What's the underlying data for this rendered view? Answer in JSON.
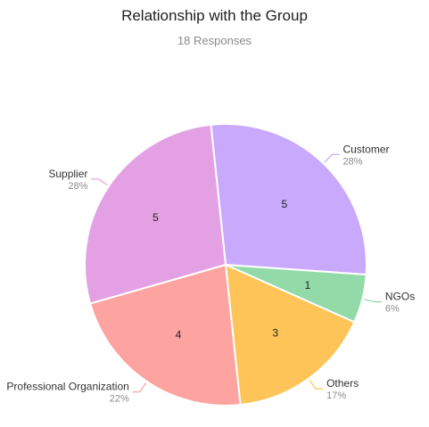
{
  "chart_data": {
    "type": "pie",
    "title": "Relationship with the Group",
    "subtitle": "18 Responses",
    "slices": [
      {
        "label": "Customer",
        "value": 5,
        "percent": "28%",
        "color": "#C9A9FB"
      },
      {
        "label": "NGOs",
        "value": 1,
        "percent": "6%",
        "color": "#92DAA8"
      },
      {
        "label": "Others",
        "value": 3,
        "percent": "17%",
        "color": "#FEC457"
      },
      {
        "label": "Professional Organization",
        "value": 4,
        "percent": "22%",
        "color": "#FDA3A0"
      },
      {
        "label": "Supplier",
        "value": 5,
        "percent": "28%",
        "color": "#E3A1E4"
      }
    ]
  }
}
